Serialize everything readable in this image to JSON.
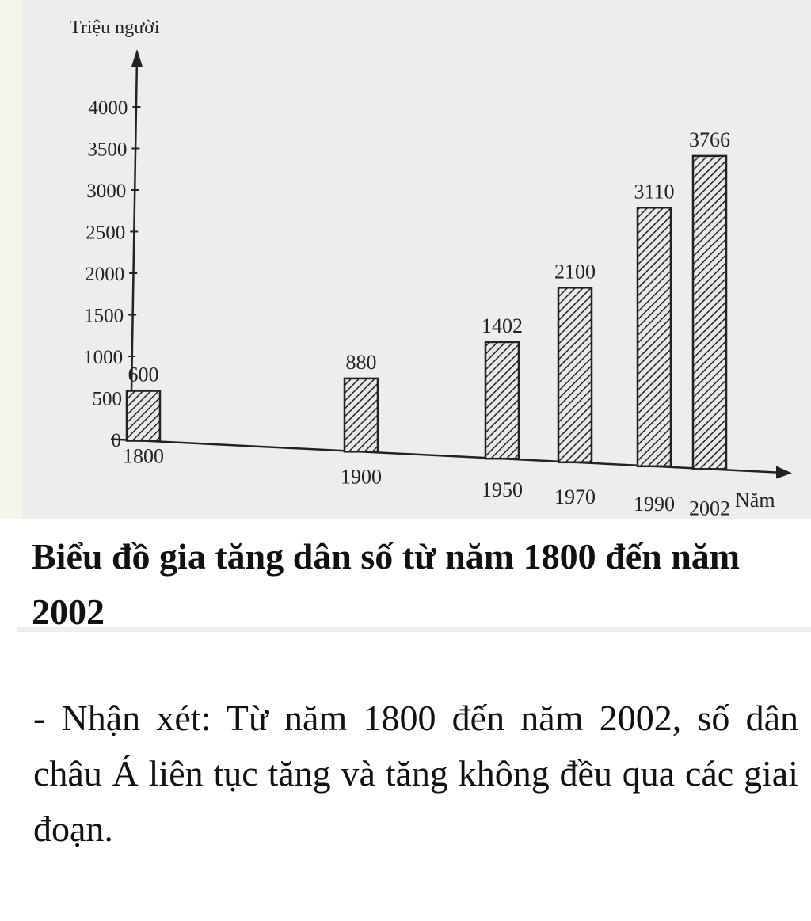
{
  "chart_data": {
    "type": "bar",
    "title": "Biểu đồ gia tăng dân số từ năm 1800 đến năm 2002",
    "xlabel": "Năm",
    "ylabel": "Triệu người",
    "categories": [
      "1800",
      "1900",
      "1950",
      "1970",
      "1990",
      "2002"
    ],
    "values": [
      600,
      880,
      1402,
      2100,
      3110,
      3766
    ],
    "data_labels": [
      "600",
      "880",
      "1402",
      "2100",
      "3110",
      "3766"
    ],
    "yticks": [
      "0",
      "500",
      "1000",
      "1500",
      "2000",
      "2500",
      "3000",
      "3500",
      "4000"
    ],
    "ylim": [
      0,
      4000
    ],
    "grid": false,
    "bar_fill": "hatched",
    "colors": {
      "bar": "#222222",
      "background": "#eceeeb"
    }
  },
  "caption": {
    "title": "Biểu đồ gia tăng dân số từ năm 1800 đến năm 2002",
    "comment": "- Nhận xét: Từ năm 1800 đến năm 2002, số dân châu Á liên tục tăng và tăng không đều qua các giai đoạn."
  }
}
